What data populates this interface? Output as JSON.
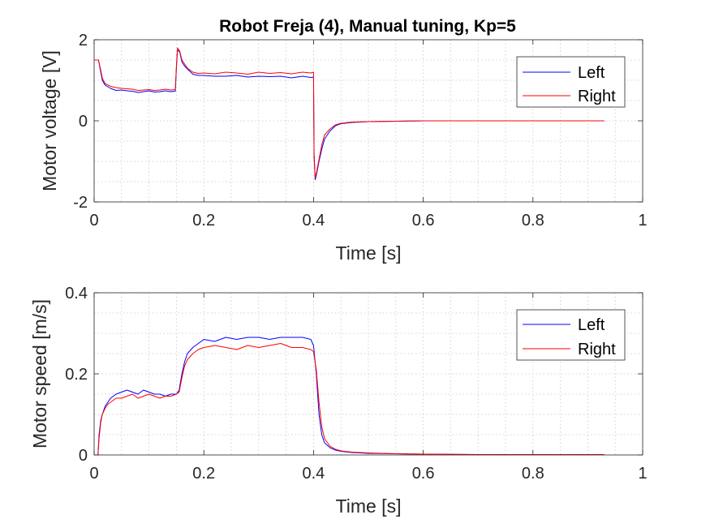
{
  "chart_data": [
    {
      "type": "line",
      "title": "Robot Freja (4), Manual tuning, Kp=5",
      "xlabel": "Time [s]",
      "ylabel": "Motor voltage [V]",
      "xlim": [
        0,
        1
      ],
      "ylim": [
        -2,
        2
      ],
      "xticks": [
        0,
        0.2,
        0.4,
        0.6,
        0.8,
        1
      ],
      "xtick_labels": [
        "0",
        "0.2",
        "0.4",
        "0.6",
        "0.8",
        "1"
      ],
      "yticks": [
        -2,
        0,
        2
      ],
      "ytick_labels": [
        "-2",
        "0",
        "2"
      ],
      "grid": true,
      "minor_grid": true,
      "legend": "top-right",
      "series": [
        {
          "name": "Left",
          "color": "#0000ff",
          "x": [
            0,
            0.008,
            0.012,
            0.015,
            0.02,
            0.03,
            0.04,
            0.05,
            0.06,
            0.07,
            0.08,
            0.09,
            0.1,
            0.11,
            0.12,
            0.13,
            0.14,
            0.148,
            0.15,
            0.152,
            0.156,
            0.16,
            0.165,
            0.17,
            0.18,
            0.19,
            0.2,
            0.22,
            0.24,
            0.26,
            0.28,
            0.3,
            0.32,
            0.34,
            0.36,
            0.38,
            0.395,
            0.4,
            0.401,
            0.403,
            0.405,
            0.41,
            0.415,
            0.42,
            0.43,
            0.44,
            0.45,
            0.47,
            0.5,
            0.55,
            0.6,
            0.7,
            0.8,
            0.93
          ],
          "y": [
            1.5,
            1.5,
            1.2,
            1.0,
            0.88,
            0.8,
            0.75,
            0.76,
            0.74,
            0.73,
            0.7,
            0.72,
            0.74,
            0.71,
            0.72,
            0.74,
            0.72,
            0.73,
            1.3,
            1.75,
            1.7,
            1.45,
            1.35,
            1.28,
            1.15,
            1.12,
            1.12,
            1.1,
            1.1,
            1.12,
            1.08,
            1.1,
            1.09,
            1.1,
            1.06,
            1.1,
            1.07,
            1.08,
            -0.8,
            -1.45,
            -1.35,
            -1.0,
            -0.7,
            -0.45,
            -0.25,
            -0.12,
            -0.07,
            -0.04,
            -0.02,
            -0.01,
            0,
            0,
            0,
            0
          ]
        },
        {
          "name": "Right",
          "color": "#ff0000",
          "x": [
            0,
            0.008,
            0.012,
            0.015,
            0.02,
            0.03,
            0.04,
            0.05,
            0.06,
            0.07,
            0.08,
            0.09,
            0.1,
            0.11,
            0.12,
            0.13,
            0.14,
            0.148,
            0.15,
            0.152,
            0.156,
            0.16,
            0.165,
            0.17,
            0.18,
            0.19,
            0.2,
            0.22,
            0.24,
            0.26,
            0.28,
            0.3,
            0.32,
            0.34,
            0.36,
            0.38,
            0.395,
            0.4,
            0.401,
            0.403,
            0.405,
            0.41,
            0.415,
            0.42,
            0.43,
            0.44,
            0.45,
            0.47,
            0.5,
            0.55,
            0.6,
            0.7,
            0.8,
            0.93
          ],
          "y": [
            1.5,
            1.5,
            1.25,
            1.05,
            0.92,
            0.85,
            0.82,
            0.8,
            0.79,
            0.78,
            0.75,
            0.76,
            0.77,
            0.75,
            0.76,
            0.78,
            0.76,
            0.77,
            1.35,
            1.8,
            1.72,
            1.5,
            1.4,
            1.3,
            1.2,
            1.17,
            1.18,
            1.16,
            1.2,
            1.18,
            1.15,
            1.2,
            1.17,
            1.19,
            1.16,
            1.2,
            1.18,
            1.2,
            -0.9,
            -1.4,
            -1.3,
            -0.95,
            -0.6,
            -0.35,
            -0.2,
            -0.1,
            -0.06,
            -0.03,
            -0.02,
            -0.01,
            0,
            0,
            0,
            0
          ]
        }
      ]
    },
    {
      "type": "line",
      "title": "",
      "xlabel": "Time [s]",
      "ylabel": "Motor speed [m/s]",
      "xlim": [
        0,
        1
      ],
      "ylim": [
        0,
        0.4
      ],
      "xticks": [
        0,
        0.2,
        0.4,
        0.6,
        0.8,
        1
      ],
      "xtick_labels": [
        "0",
        "0.2",
        "0.4",
        "0.6",
        "0.8",
        "1"
      ],
      "yticks": [
        0,
        0.2,
        0.4
      ],
      "ytick_labels": [
        "0",
        "0.2",
        "0.4"
      ],
      "grid": true,
      "minor_grid": true,
      "legend": "top-right",
      "series": [
        {
          "name": "Left",
          "color": "#0000ff",
          "x": [
            0,
            0.007,
            0.009,
            0.012,
            0.015,
            0.02,
            0.025,
            0.03,
            0.04,
            0.05,
            0.06,
            0.07,
            0.08,
            0.09,
            0.1,
            0.11,
            0.12,
            0.13,
            0.14,
            0.15,
            0.155,
            0.16,
            0.165,
            0.17,
            0.18,
            0.19,
            0.2,
            0.22,
            0.24,
            0.26,
            0.28,
            0.3,
            0.32,
            0.34,
            0.36,
            0.38,
            0.395,
            0.4,
            0.405,
            0.41,
            0.415,
            0.42,
            0.43,
            0.44,
            0.45,
            0.47,
            0.5,
            0.55,
            0.6,
            0.7,
            0.8,
            0.93
          ],
          "y": [
            0,
            0,
            0.05,
            0.085,
            0.1,
            0.12,
            0.13,
            0.14,
            0.15,
            0.155,
            0.16,
            0.155,
            0.15,
            0.16,
            0.155,
            0.15,
            0.15,
            0.145,
            0.15,
            0.15,
            0.16,
            0.2,
            0.23,
            0.25,
            0.265,
            0.275,
            0.285,
            0.28,
            0.29,
            0.285,
            0.29,
            0.29,
            0.285,
            0.29,
            0.29,
            0.29,
            0.285,
            0.27,
            0.2,
            0.1,
            0.05,
            0.03,
            0.018,
            0.012,
            0.009,
            0.006,
            0.004,
            0.003,
            0.002,
            0.001,
            0.001,
            0.001
          ]
        },
        {
          "name": "Right",
          "color": "#ff0000",
          "x": [
            0,
            0.007,
            0.009,
            0.012,
            0.015,
            0.02,
            0.025,
            0.03,
            0.04,
            0.05,
            0.06,
            0.07,
            0.08,
            0.09,
            0.1,
            0.11,
            0.12,
            0.13,
            0.14,
            0.15,
            0.155,
            0.16,
            0.165,
            0.17,
            0.18,
            0.19,
            0.2,
            0.22,
            0.24,
            0.26,
            0.28,
            0.3,
            0.32,
            0.34,
            0.36,
            0.38,
            0.395,
            0.4,
            0.405,
            0.41,
            0.415,
            0.42,
            0.43,
            0.44,
            0.45,
            0.47,
            0.5,
            0.55,
            0.6,
            0.7,
            0.8,
            0.93
          ],
          "y": [
            0,
            0,
            0.04,
            0.08,
            0.1,
            0.115,
            0.125,
            0.13,
            0.14,
            0.14,
            0.145,
            0.15,
            0.14,
            0.145,
            0.15,
            0.145,
            0.14,
            0.145,
            0.145,
            0.15,
            0.155,
            0.19,
            0.22,
            0.235,
            0.25,
            0.26,
            0.265,
            0.27,
            0.265,
            0.26,
            0.27,
            0.265,
            0.27,
            0.275,
            0.265,
            0.265,
            0.26,
            0.255,
            0.21,
            0.13,
            0.07,
            0.04,
            0.022,
            0.014,
            0.01,
            0.007,
            0.005,
            0.003,
            0.002,
            0.001,
            0.001,
            0.001
          ]
        }
      ]
    }
  ]
}
